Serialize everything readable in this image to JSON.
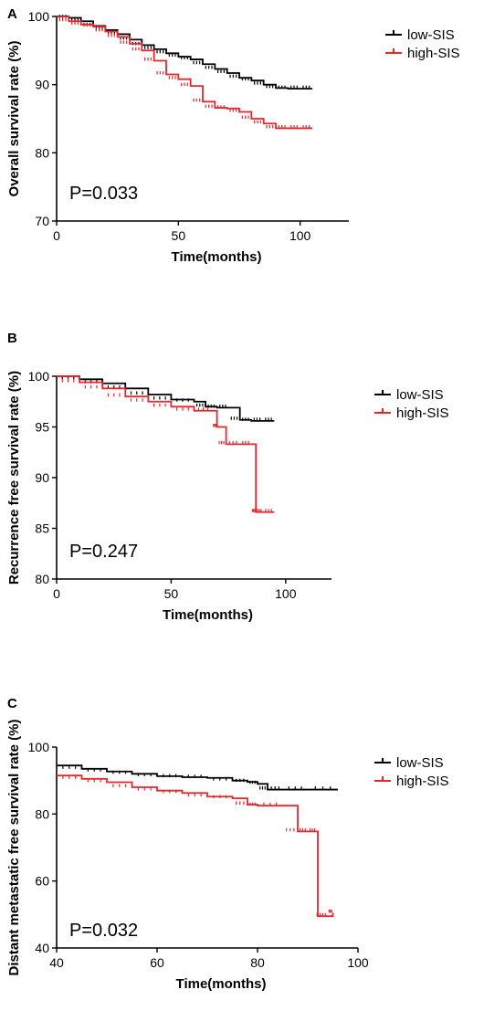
{
  "chart_data": [
    {
      "type": "line",
      "panel": "A",
      "xlabel": "Time(months)",
      "ylabel": "Overall survival rate (%)",
      "xlim": [
        0,
        120
      ],
      "ylim": [
        70,
        100
      ],
      "xticks": [
        0,
        50,
        100
      ],
      "yticks": [
        70,
        80,
        90,
        100
      ],
      "legend_position": "top-right",
      "annotation": "P=0.033",
      "series": [
        {
          "name": "low-SIS",
          "color": "#000000",
          "x": [
            0,
            5,
            10,
            15,
            20,
            25,
            30,
            35,
            40,
            45,
            50,
            55,
            60,
            65,
            70,
            75,
            80,
            85,
            90,
            95,
            100,
            105
          ],
          "y": [
            100,
            99.8,
            99.3,
            98.6,
            98.0,
            97.4,
            96.6,
            95.8,
            95.2,
            94.6,
            94.1,
            93.7,
            93.0,
            92.3,
            91.7,
            91.0,
            90.6,
            90.0,
            89.5,
            89.4,
            89.4,
            89.4
          ]
        },
        {
          "name": "high-SIS",
          "color": "#e8262d",
          "x": [
            0,
            5,
            10,
            15,
            20,
            25,
            30,
            35,
            40,
            45,
            50,
            55,
            60,
            65,
            70,
            75,
            80,
            85,
            90,
            95,
            100,
            105
          ],
          "y": [
            100,
            99.3,
            98.8,
            98.5,
            97.8,
            97.0,
            96.0,
            95.0,
            93.5,
            91.5,
            90.8,
            89.8,
            87.5,
            86.6,
            86.5,
            86.0,
            85.0,
            84.3,
            83.6,
            83.6,
            83.6,
            83.6
          ]
        }
      ]
    },
    {
      "type": "line",
      "panel": "B",
      "xlabel": "Time(months)",
      "ylabel": "Recurrence free survival rate (%)",
      "xlim": [
        0,
        120
      ],
      "ylim": [
        80,
        100
      ],
      "xticks": [
        0,
        50,
        100
      ],
      "yticks": [
        80,
        85,
        90,
        95,
        100
      ],
      "legend_position": "top-right",
      "annotation": "P=0.247",
      "series": [
        {
          "name": "low-SIS",
          "color": "#000000",
          "x": [
            0,
            10,
            20,
            30,
            40,
            50,
            60,
            65,
            70,
            75,
            80,
            85,
            90,
            95
          ],
          "y": [
            100,
            99.7,
            99.3,
            98.8,
            98.2,
            97.7,
            97.5,
            97.0,
            96.9,
            96.9,
            95.7,
            95.6,
            95.6,
            95.6
          ]
        },
        {
          "name": "high-SIS",
          "color": "#e8262d",
          "x": [
            0,
            10,
            20,
            30,
            40,
            50,
            60,
            68,
            70,
            74,
            80,
            85,
            87,
            90,
            95
          ],
          "y": [
            100,
            99.4,
            98.8,
            98.0,
            97.5,
            97.0,
            96.6,
            96.6,
            95.0,
            93.3,
            93.3,
            93.3,
            86.6,
            86.6,
            86.6
          ]
        }
      ]
    },
    {
      "type": "line",
      "panel": "C",
      "xlabel": "Time(months)",
      "ylabel": "Distant metastatic free survival rate (%)",
      "xlim": [
        40,
        100
      ],
      "ylim": [
        40,
        100
      ],
      "xticks": [
        40,
        60,
        80,
        100
      ],
      "yticks": [
        40,
        60,
        80,
        100
      ],
      "legend_position": "top-right",
      "annotation": "P=0.032",
      "series": [
        {
          "name": "low-SIS",
          "color": "#000000",
          "x": [
            40,
            45,
            50,
            55,
            60,
            65,
            70,
            75,
            78,
            80,
            82,
            85,
            90,
            96
          ],
          "y": [
            94.5,
            93.5,
            92.7,
            92.0,
            91.3,
            91.0,
            90.8,
            90.0,
            89.6,
            89.0,
            87.3,
            87.3,
            87.3,
            87.3
          ]
        },
        {
          "name": "high-SIS",
          "color": "#e8262d",
          "x": [
            40,
            45,
            50,
            55,
            60,
            65,
            70,
            75,
            78,
            80,
            85,
            88,
            90,
            91.8,
            92,
            94,
            95
          ],
          "y": [
            91.5,
            90.5,
            89.5,
            88.0,
            87.0,
            86.3,
            85.2,
            84.7,
            82.8,
            82.5,
            82.5,
            74.8,
            74.8,
            74.8,
            49.5,
            49.5,
            50.5
          ]
        }
      ]
    }
  ]
}
